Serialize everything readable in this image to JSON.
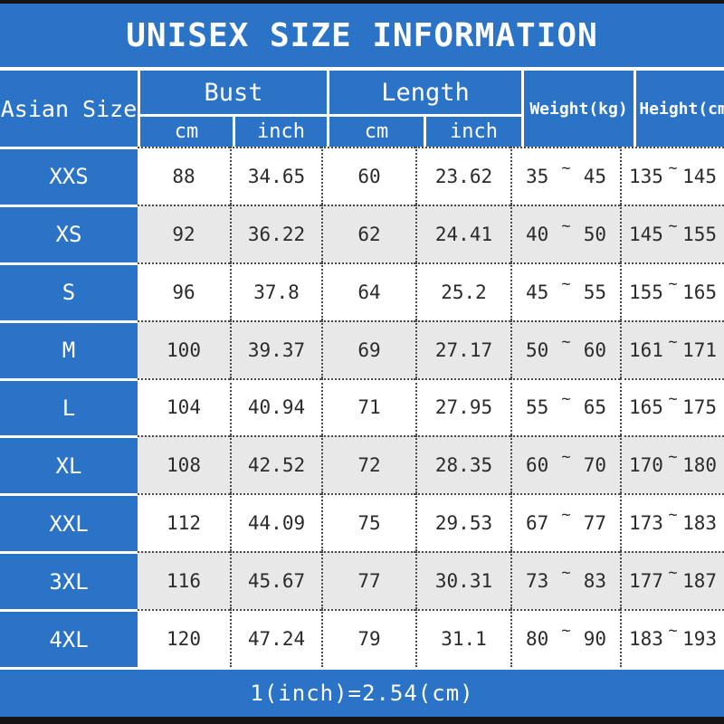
{
  "title": "UNISEX SIZE INFORMATION",
  "footer_note": "1(inch)=2.54(cm)",
  "tilde": "~",
  "header": {
    "size_column": "Asian Size",
    "bust_group": "Bust",
    "length_group": "Length",
    "sub_cm": "cm",
    "sub_inch": "inch",
    "weight": "Weight(kg)",
    "height": "Height(cm)"
  },
  "colors": {
    "blue": "#2b73c6",
    "row_alt": "#e8e8e8",
    "dotted_line": "#4a4a4a",
    "black_bar": "#141414",
    "data_text": "#2b2b2b"
  },
  "rows": [
    {
      "size": "XXS",
      "bust_cm": "88",
      "bust_inch": "34.65",
      "length_cm": "60",
      "length_inch": "23.62",
      "weight_low": "35",
      "weight_high": "45",
      "height_low": "135",
      "height_high": "145"
    },
    {
      "size": "XS",
      "bust_cm": "92",
      "bust_inch": "36.22",
      "length_cm": "62",
      "length_inch": "24.41",
      "weight_low": "40",
      "weight_high": "50",
      "height_low": "145",
      "height_high": "155"
    },
    {
      "size": "S",
      "bust_cm": "96",
      "bust_inch": "37.8",
      "length_cm": "64",
      "length_inch": "25.2",
      "weight_low": "45",
      "weight_high": "55",
      "height_low": "155",
      "height_high": "165"
    },
    {
      "size": "M",
      "bust_cm": "100",
      "bust_inch": "39.37",
      "length_cm": "69",
      "length_inch": "27.17",
      "weight_low": "50",
      "weight_high": "60",
      "height_low": "161",
      "height_high": "171"
    },
    {
      "size": "L",
      "bust_cm": "104",
      "bust_inch": "40.94",
      "length_cm": "71",
      "length_inch": "27.95",
      "weight_low": "55",
      "weight_high": "65",
      "height_low": "165",
      "height_high": "175"
    },
    {
      "size": "XL",
      "bust_cm": "108",
      "bust_inch": "42.52",
      "length_cm": "72",
      "length_inch": "28.35",
      "weight_low": "60",
      "weight_high": "70",
      "height_low": "170",
      "height_high": "180"
    },
    {
      "size": "XXL",
      "bust_cm": "112",
      "bust_inch": "44.09",
      "length_cm": "75",
      "length_inch": "29.53",
      "weight_low": "67",
      "weight_high": "77",
      "height_low": "173",
      "height_high": "183"
    },
    {
      "size": "3XL",
      "bust_cm": "116",
      "bust_inch": "45.67",
      "length_cm": "77",
      "length_inch": "30.31",
      "weight_low": "73",
      "weight_high": "83",
      "height_low": "177",
      "height_high": "187"
    },
    {
      "size": "4XL",
      "bust_cm": "120",
      "bust_inch": "47.24",
      "length_cm": "79",
      "length_inch": "31.1",
      "weight_low": "80",
      "weight_high": "90",
      "height_low": "183",
      "height_high": "193"
    }
  ],
  "chart_data": {
    "type": "table",
    "title": "UNISEX SIZE INFORMATION",
    "columns": [
      "Asian Size",
      "Bust cm",
      "Bust inch",
      "Length cm",
      "Length inch",
      "Weight(kg)",
      "Height(cm)"
    ],
    "rows": [
      [
        "XXS",
        88,
        34.65,
        60,
        23.62,
        "35~45",
        "135~145"
      ],
      [
        "XS",
        92,
        36.22,
        62,
        24.41,
        "40~50",
        "145~155"
      ],
      [
        "S",
        96,
        37.8,
        64,
        25.2,
        "45~55",
        "155~165"
      ],
      [
        "M",
        100,
        39.37,
        69,
        27.17,
        "50~60",
        "161~171"
      ],
      [
        "L",
        104,
        40.94,
        71,
        27.95,
        "55~65",
        "165~175"
      ],
      [
        "XL",
        108,
        42.52,
        72,
        28.35,
        "60~70",
        "170~180"
      ],
      [
        "XXL",
        112,
        44.09,
        75,
        29.53,
        "67~77",
        "173~183"
      ],
      [
        "3XL",
        116,
        45.67,
        77,
        30.31,
        "73~83",
        "177~187"
      ],
      [
        "4XL",
        120,
        47.24,
        79,
        31.1,
        "80~90",
        "183~193"
      ]
    ],
    "note": "1(inch)=2.54(cm)",
    "layout": {
      "header_background": "#2b73c6",
      "alternating_rows": true,
      "grid": "dotted"
    }
  }
}
